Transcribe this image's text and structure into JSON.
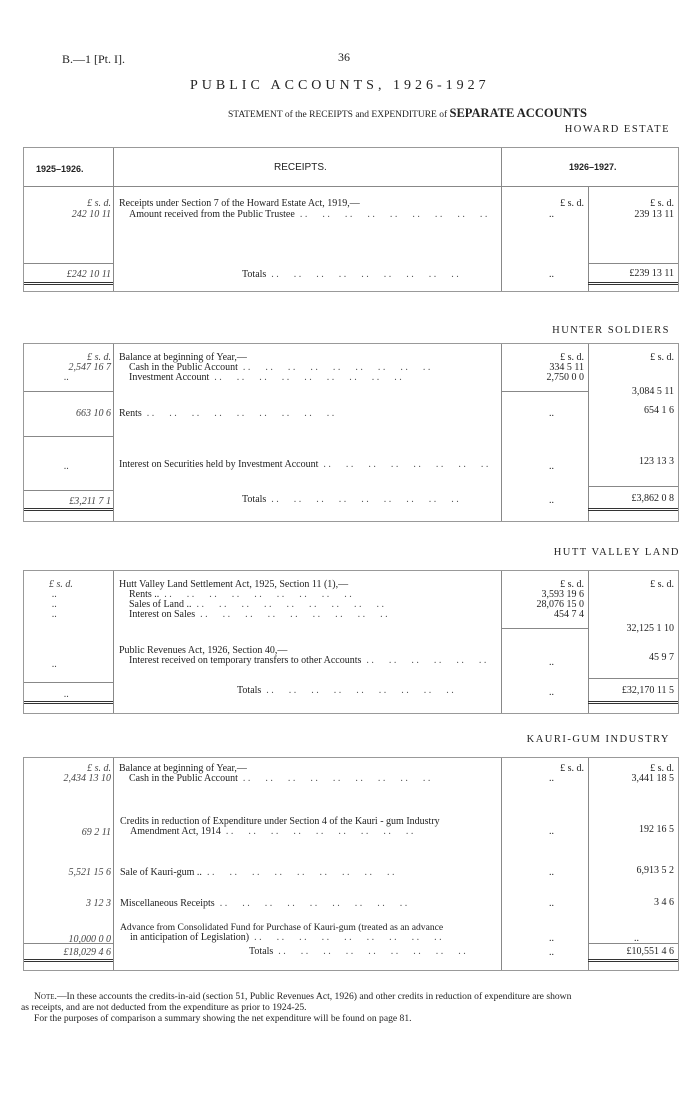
{
  "header": {
    "ref": "B.—1 [Pt. I].",
    "page_number": "36",
    "title": "PUBLIC ACCOUNTS, 1926-1927",
    "subtitle_pre": "STATEMENT of the RECEIPTS and EXPENDITURE of",
    "subtitle_bold": "SEPARATE ACCOUNTS"
  },
  "table_header": {
    "prev_year": "1925–1926.",
    "receipts": "RECEIPTS.",
    "curr_year": "1926–1927."
  },
  "units": {
    "lsd": "£   s. d.",
    "lsd_tight": "£  s.  d."
  },
  "sections": [
    {
      "title": "HOWARD ESTATE",
      "heading": "Receipts under Section 7 of the Howard Estate Act, 1919,—",
      "line1": "Amount received from the Public Trustee",
      "prev1": "242 10 11",
      "mid1": "..",
      "right1": "239 13 11",
      "totals_label": "Totals",
      "prev_total": "£242 10 11",
      "mid_total": "..",
      "right_total": "£239 13 11"
    },
    {
      "title": "HUNTER SOLDIERS",
      "heading": "Balance at beginning of Year,—",
      "line1": "Cash in the Public Account",
      "line2": "Investment Account",
      "prev1": "2,547 16  7",
      "prev2": "..",
      "mid1": "334  5 11",
      "mid2": "2,750  0  0",
      "right1": "3,084 5 11",
      "rents_label": "Rents",
      "rents_prev": "663 10  6",
      "rents_mid": "..",
      "rents_right": "654  1  6",
      "interest_label": "Interest on Securities held by Investment Account",
      "interest_prev": "..",
      "interest_mid": "..",
      "interest_right": "123 13  3",
      "totals_label": "Totals",
      "prev_total": "£3,211  7  1",
      "mid_total": "..",
      "right_total": "£3,862  0  8"
    },
    {
      "title": "HUTT VALLEY LAND",
      "heading": "Hutt Valley Land Settlement Act, 1925, Section 11 (1),—",
      "line1": "Rents ..",
      "line2": "Sales of Land ..",
      "line3": "Interest on Sales",
      "prev1": "..",
      "prev2": "..",
      "prev3": "..",
      "mid1": "3,593 19  6",
      "mid2": "28,076 15  0",
      "mid3": "454  7  4",
      "right1": "32,125  1 10",
      "heading2": "Public Revenues Act, 1926, Section 40,—",
      "line4": "Interest received on temporary transfers to other Accounts",
      "prev4": "..",
      "mid4": "..",
      "right4": "45  9  7",
      "totals_label": "Totals",
      "prev_total": "..",
      "mid_total": "..",
      "right_total": "£32,170 11  5"
    },
    {
      "title": "KAURI-GUM INDUSTRY",
      "heading": "Balance at beginning of Year,—",
      "line1": "Cash in the Public Account",
      "prev1": "2,434 13 10",
      "mid1": "..",
      "right1": "3,441 18  5",
      "credits1": "Credits in reduction of Expenditure under Section 4 of the Kauri - gum Industry",
      "credits2": "Amendment Act, 1914",
      "credits_prev": "69  2 11",
      "credits_mid": "..",
      "credits_right": "192 16  5",
      "sale_label": "Sale of Kauri-gum ..",
      "sale_prev": "5,521 15  6",
      "sale_mid": "..",
      "sale_right": "6,913  5  2",
      "misc_label": "Miscellaneous Receipts",
      "misc_prev": "3 12  3",
      "misc_mid": "..",
      "misc_right": "3  4  6",
      "adv1": "Advance from Consolidated Fund for Purchase of Kauri-gum (treated as an advance",
      "adv2": "in anticipation of Legislation)",
      "adv_prev": "10,000  0  0",
      "adv_mid": "..",
      "adv_right": "..",
      "totals_label": "Totals",
      "prev_total": "£18,029  4  6",
      "mid_total": "..",
      "right_total": "£10,551  4  6"
    }
  ],
  "note": {
    "lead": "Note.",
    "line1": "—In these accounts the credits-in-aid (section 51, Public Revenues Act, 1926) and other credits in reduction of expenditure are shown",
    "line2": "as receipts, and are not deducted from the expenditure as prior to 1924-25.",
    "line3": "For the purposes of comparison a summary showing the net expenditure will be found on page 81."
  }
}
